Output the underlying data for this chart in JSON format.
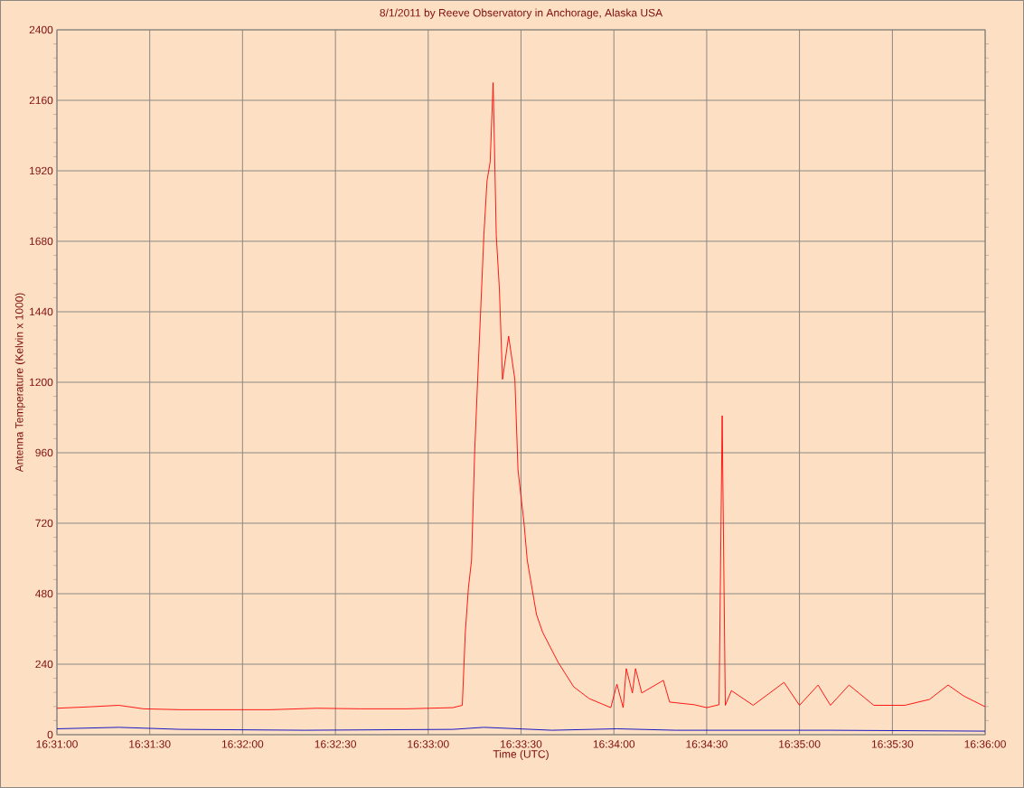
{
  "chart_data": {
    "type": "line",
    "title": "8/1/2011  by  Reeve Observatory  in  Anchorage, Alaska  USA",
    "xlabel": "Time (UTC)",
    "ylabel": "Antenna Temperature (Kelvin x 1000)",
    "x": [
      16.51667,
      16.51972,
      16.52222,
      16.52444,
      16.52778,
      16.53194,
      16.53583,
      16.54,
      16.54389,
      16.54806,
      16.55222,
      16.55306,
      16.55333,
      16.55361,
      16.55389,
      16.55417,
      16.55444,
      16.55472,
      16.555,
      16.55528,
      16.55556,
      16.55583,
      16.55611,
      16.55639,
      16.55667,
      16.55722,
      16.55778,
      16.55806,
      16.55861,
      16.55889,
      16.55972,
      16.56028,
      16.56167,
      16.56306,
      16.56444,
      16.56639,
      16.56694,
      16.5675,
      16.56778,
      16.56833,
      16.56861,
      16.56917,
      16.57111,
      16.57167,
      16.57389,
      16.575,
      16.57611,
      16.57639,
      16.57667,
      16.57722,
      16.57917,
      16.58194,
      16.58333,
      16.585,
      16.58611,
      16.58778,
      16.59,
      16.59278,
      16.595,
      16.59667,
      16.59806,
      16.6
    ],
    "series": [
      {
        "color": "#ff0000",
        "values": [
          90,
          95,
          100,
          88,
          85,
          85,
          85,
          90,
          88,
          88,
          92,
          100,
          348,
          500,
          594,
          963,
          1209,
          1455,
          1702,
          1886,
          1950,
          2220,
          1700,
          1517,
          1210,
          1357,
          1209,
          902,
          717,
          594,
          409,
          348,
          246,
          163,
          123,
          92,
          172,
          92,
          225,
          142,
          225,
          142,
          185,
          111,
          102,
          92,
          102,
          1086,
          100,
          150,
          100,
          178,
          100,
          169,
          100,
          169,
          100,
          100,
          120,
          169,
          132,
          95
        ]
      },
      {
        "color": "#0000c0",
        "x": [
          16.51667,
          16.52222,
          16.52778,
          16.53889,
          16.55222,
          16.555,
          16.56111,
          16.56694,
          16.57222,
          16.58611,
          16.6
        ],
        "values": [
          20,
          25,
          18,
          15,
          18,
          25,
          15,
          20,
          15,
          15,
          12
        ]
      }
    ],
    "xlim": [
      16.51667,
      16.6
    ],
    "ylim": [
      0,
      2400
    ],
    "xticks": [
      {
        "value": 16.51667,
        "label": "16:31:00"
      },
      {
        "value": 16.525,
        "label": "16:31:30"
      },
      {
        "value": 16.53333,
        "label": "16:32:00"
      },
      {
        "value": 16.54167,
        "label": "16:32:30"
      },
      {
        "value": 16.55,
        "label": "16:33:00"
      },
      {
        "value": 16.55833,
        "label": "16:33:30"
      },
      {
        "value": 16.56667,
        "label": "16:34:00"
      },
      {
        "value": 16.575,
        "label": "16:34:30"
      },
      {
        "value": 16.58333,
        "label": "16:35:00"
      },
      {
        "value": 16.59167,
        "label": "16:35:30"
      },
      {
        "value": 16.6,
        "label": "16:36:00"
      }
    ],
    "yticks": [
      0,
      240,
      480,
      720,
      960,
      1200,
      1440,
      1680,
      1920,
      2160,
      2400
    ],
    "grid": true,
    "marker": "none",
    "line_style": "solid"
  }
}
